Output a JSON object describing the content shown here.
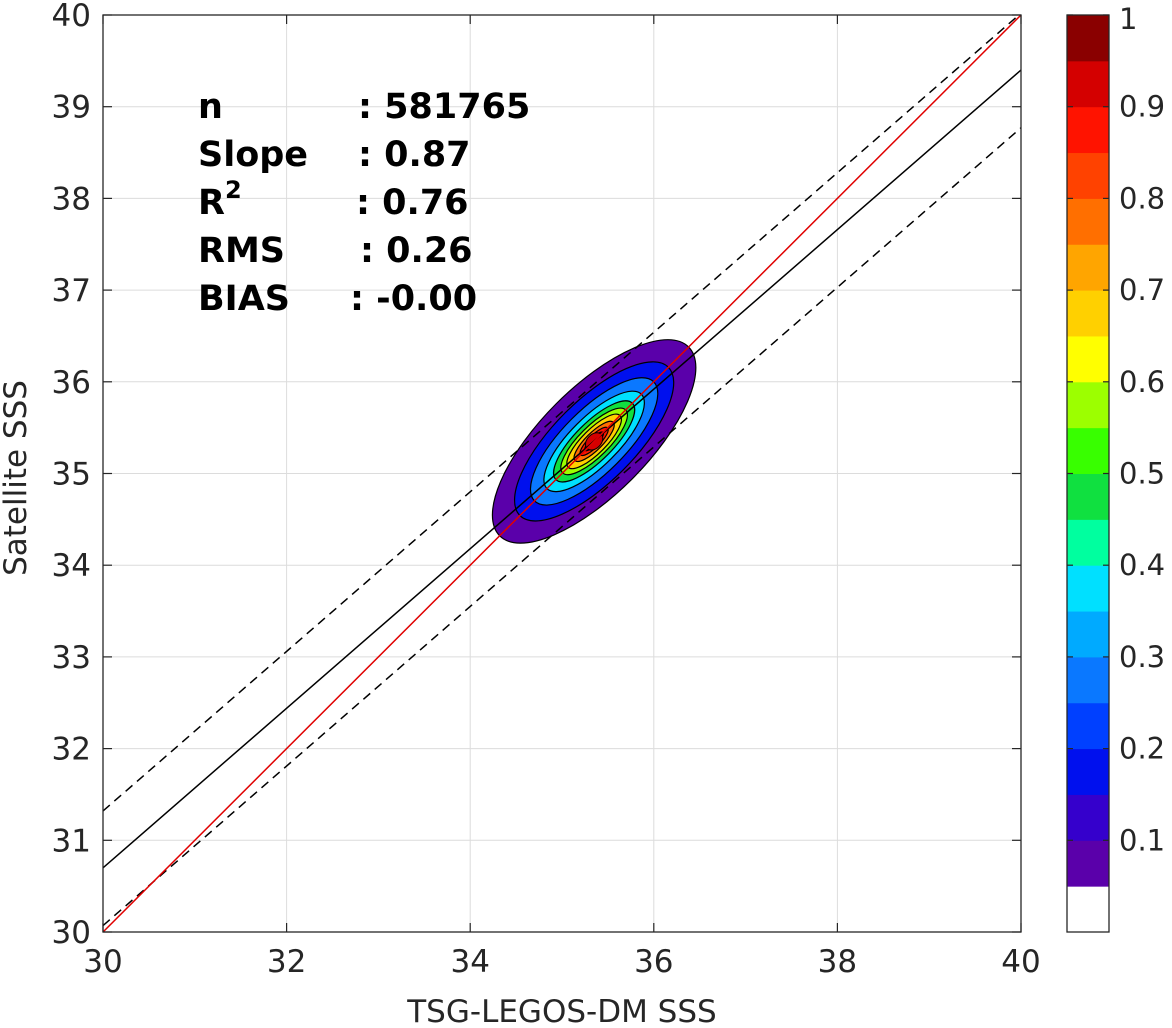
{
  "chart_data": {
    "type": "contour",
    "xlabel": "TSG-LEGOS-DM SSS",
    "ylabel": "Satellite SSS",
    "xlim": [
      30,
      40
    ],
    "ylim": [
      30,
      40
    ],
    "x_ticks": [
      "30",
      "32",
      "34",
      "36",
      "38",
      "40"
    ],
    "y_ticks": [
      "30",
      "31",
      "32",
      "33",
      "34",
      "35",
      "36",
      "37",
      "38",
      "39",
      "40"
    ],
    "grid": true,
    "stats": [
      {
        "label": "n",
        "value": ": 581765"
      },
      {
        "label": "Slope",
        "value": ": 0.87"
      },
      {
        "label": "R",
        "sup": "2",
        "value": ": 0.76"
      },
      {
        "label": "RMS",
        "value": ": 0.26"
      },
      {
        "label": "BIAS",
        "value": ": -0.00"
      }
    ],
    "lines": {
      "one_to_one": {
        "color": "#e00000",
        "slope": 1.0,
        "intercept": 0.0
      },
      "fit": {
        "color": "#000000",
        "slope": 0.87,
        "intercept": 4.6
      },
      "upper_bound": {
        "color": "#000000",
        "style": "dashed",
        "slope": 0.87,
        "intercept": 5.22
      },
      "lower_bound": {
        "color": "#000000",
        "style": "dashed",
        "slope": 0.87,
        "intercept": 3.97
      }
    },
    "density": {
      "center": [
        35.35,
        35.35
      ],
      "description": "normalized point density contours",
      "levels": [
        0.05,
        0.1,
        0.2,
        0.3,
        0.4,
        0.5,
        0.6,
        0.7,
        0.8,
        0.9
      ],
      "contour_extents": [
        {
          "level": 0.05,
          "x_range": [
            34.3,
            36.35
          ],
          "y_range": [
            34.2,
            36.35
          ]
        },
        {
          "level": 0.1,
          "x_range": [
            34.45,
            36.1
          ],
          "y_range": [
            34.45,
            36.1
          ]
        },
        {
          "level": 0.2,
          "x_range": [
            34.6,
            35.95
          ],
          "y_range": [
            34.65,
            35.95
          ]
        },
        {
          "level": 0.3,
          "x_range": [
            34.75,
            35.8
          ],
          "y_range": [
            34.8,
            35.85
          ]
        },
        {
          "level": 0.4,
          "x_range": [
            34.85,
            35.7
          ],
          "y_range": [
            34.9,
            35.75
          ]
        },
        {
          "level": 0.5,
          "x_range": [
            34.95,
            35.65
          ],
          "y_range": [
            35.0,
            35.7
          ]
        },
        {
          "level": 0.6,
          "x_range": [
            35.05,
            35.6
          ],
          "y_range": [
            35.05,
            35.65
          ]
        },
        {
          "level": 0.7,
          "x_range": [
            35.15,
            35.55
          ],
          "y_range": [
            35.15,
            35.6
          ]
        },
        {
          "level": 0.8,
          "x_range": [
            35.2,
            35.5
          ],
          "y_range": [
            35.2,
            35.5
          ]
        },
        {
          "level": 0.9,
          "x_range": [
            35.25,
            35.45
          ],
          "y_range": [
            35.25,
            35.45
          ]
        }
      ]
    },
    "colorbar": {
      "range": [
        0,
        1
      ],
      "ticks": [
        "0.1",
        "0.2",
        "0.3",
        "0.4",
        "0.5",
        "0.6",
        "0.7",
        "0.8",
        "0.9",
        "1"
      ],
      "colors": [
        "#ffffff",
        "#5a00aa",
        "#3500cc",
        "#0010ee",
        "#0040ff",
        "#0a78ff",
        "#00aaff",
        "#00e0ff",
        "#00ff9f",
        "#10e040",
        "#38ff00",
        "#9cff00",
        "#ffff00",
        "#ffd000",
        "#ffa500",
        "#ff6f00",
        "#ff4200",
        "#ff1300",
        "#d40000",
        "#8a0000"
      ]
    }
  }
}
